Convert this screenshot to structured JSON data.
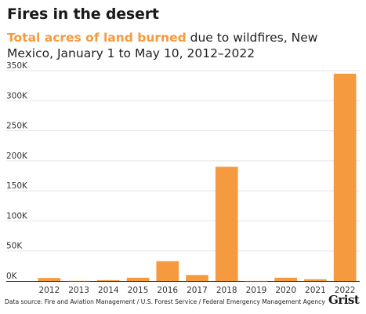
{
  "header": {
    "title": "Fires in the desert",
    "subtitle_highlight": "Total acres of land burned",
    "subtitle_rest": " due to wildfires, New Mexico, January 1 to May 10, 2012–2022"
  },
  "footer": {
    "source": "Data source: Fire and Aviation Management / U.S. Forest Service / Federal Emergency Management Agency",
    "logo": "Grist"
  },
  "colors": {
    "bar": "#f59a3e",
    "grid": "#e3e3e3",
    "baseline": "#333333"
  },
  "chart_data": {
    "type": "bar",
    "title": "Fires in the desert",
    "xlabel": "",
    "ylabel": "",
    "categories": [
      "2012",
      "2013",
      "2014",
      "2015",
      "2016",
      "2017",
      "2018",
      "2019",
      "2020",
      "2021",
      "2022"
    ],
    "values": [
      5000,
      300,
      1500,
      5500,
      33000,
      10000,
      190000,
      200,
      5500,
      3000,
      345000
    ],
    "ylim": [
      0,
      350000
    ],
    "yticks": [
      0,
      50000,
      100000,
      150000,
      200000,
      250000,
      300000,
      350000
    ],
    "ytick_labels": [
      "0K",
      "50K",
      "100K",
      "150K",
      "200K",
      "250K",
      "300K",
      "350K"
    ],
    "grid": true
  }
}
